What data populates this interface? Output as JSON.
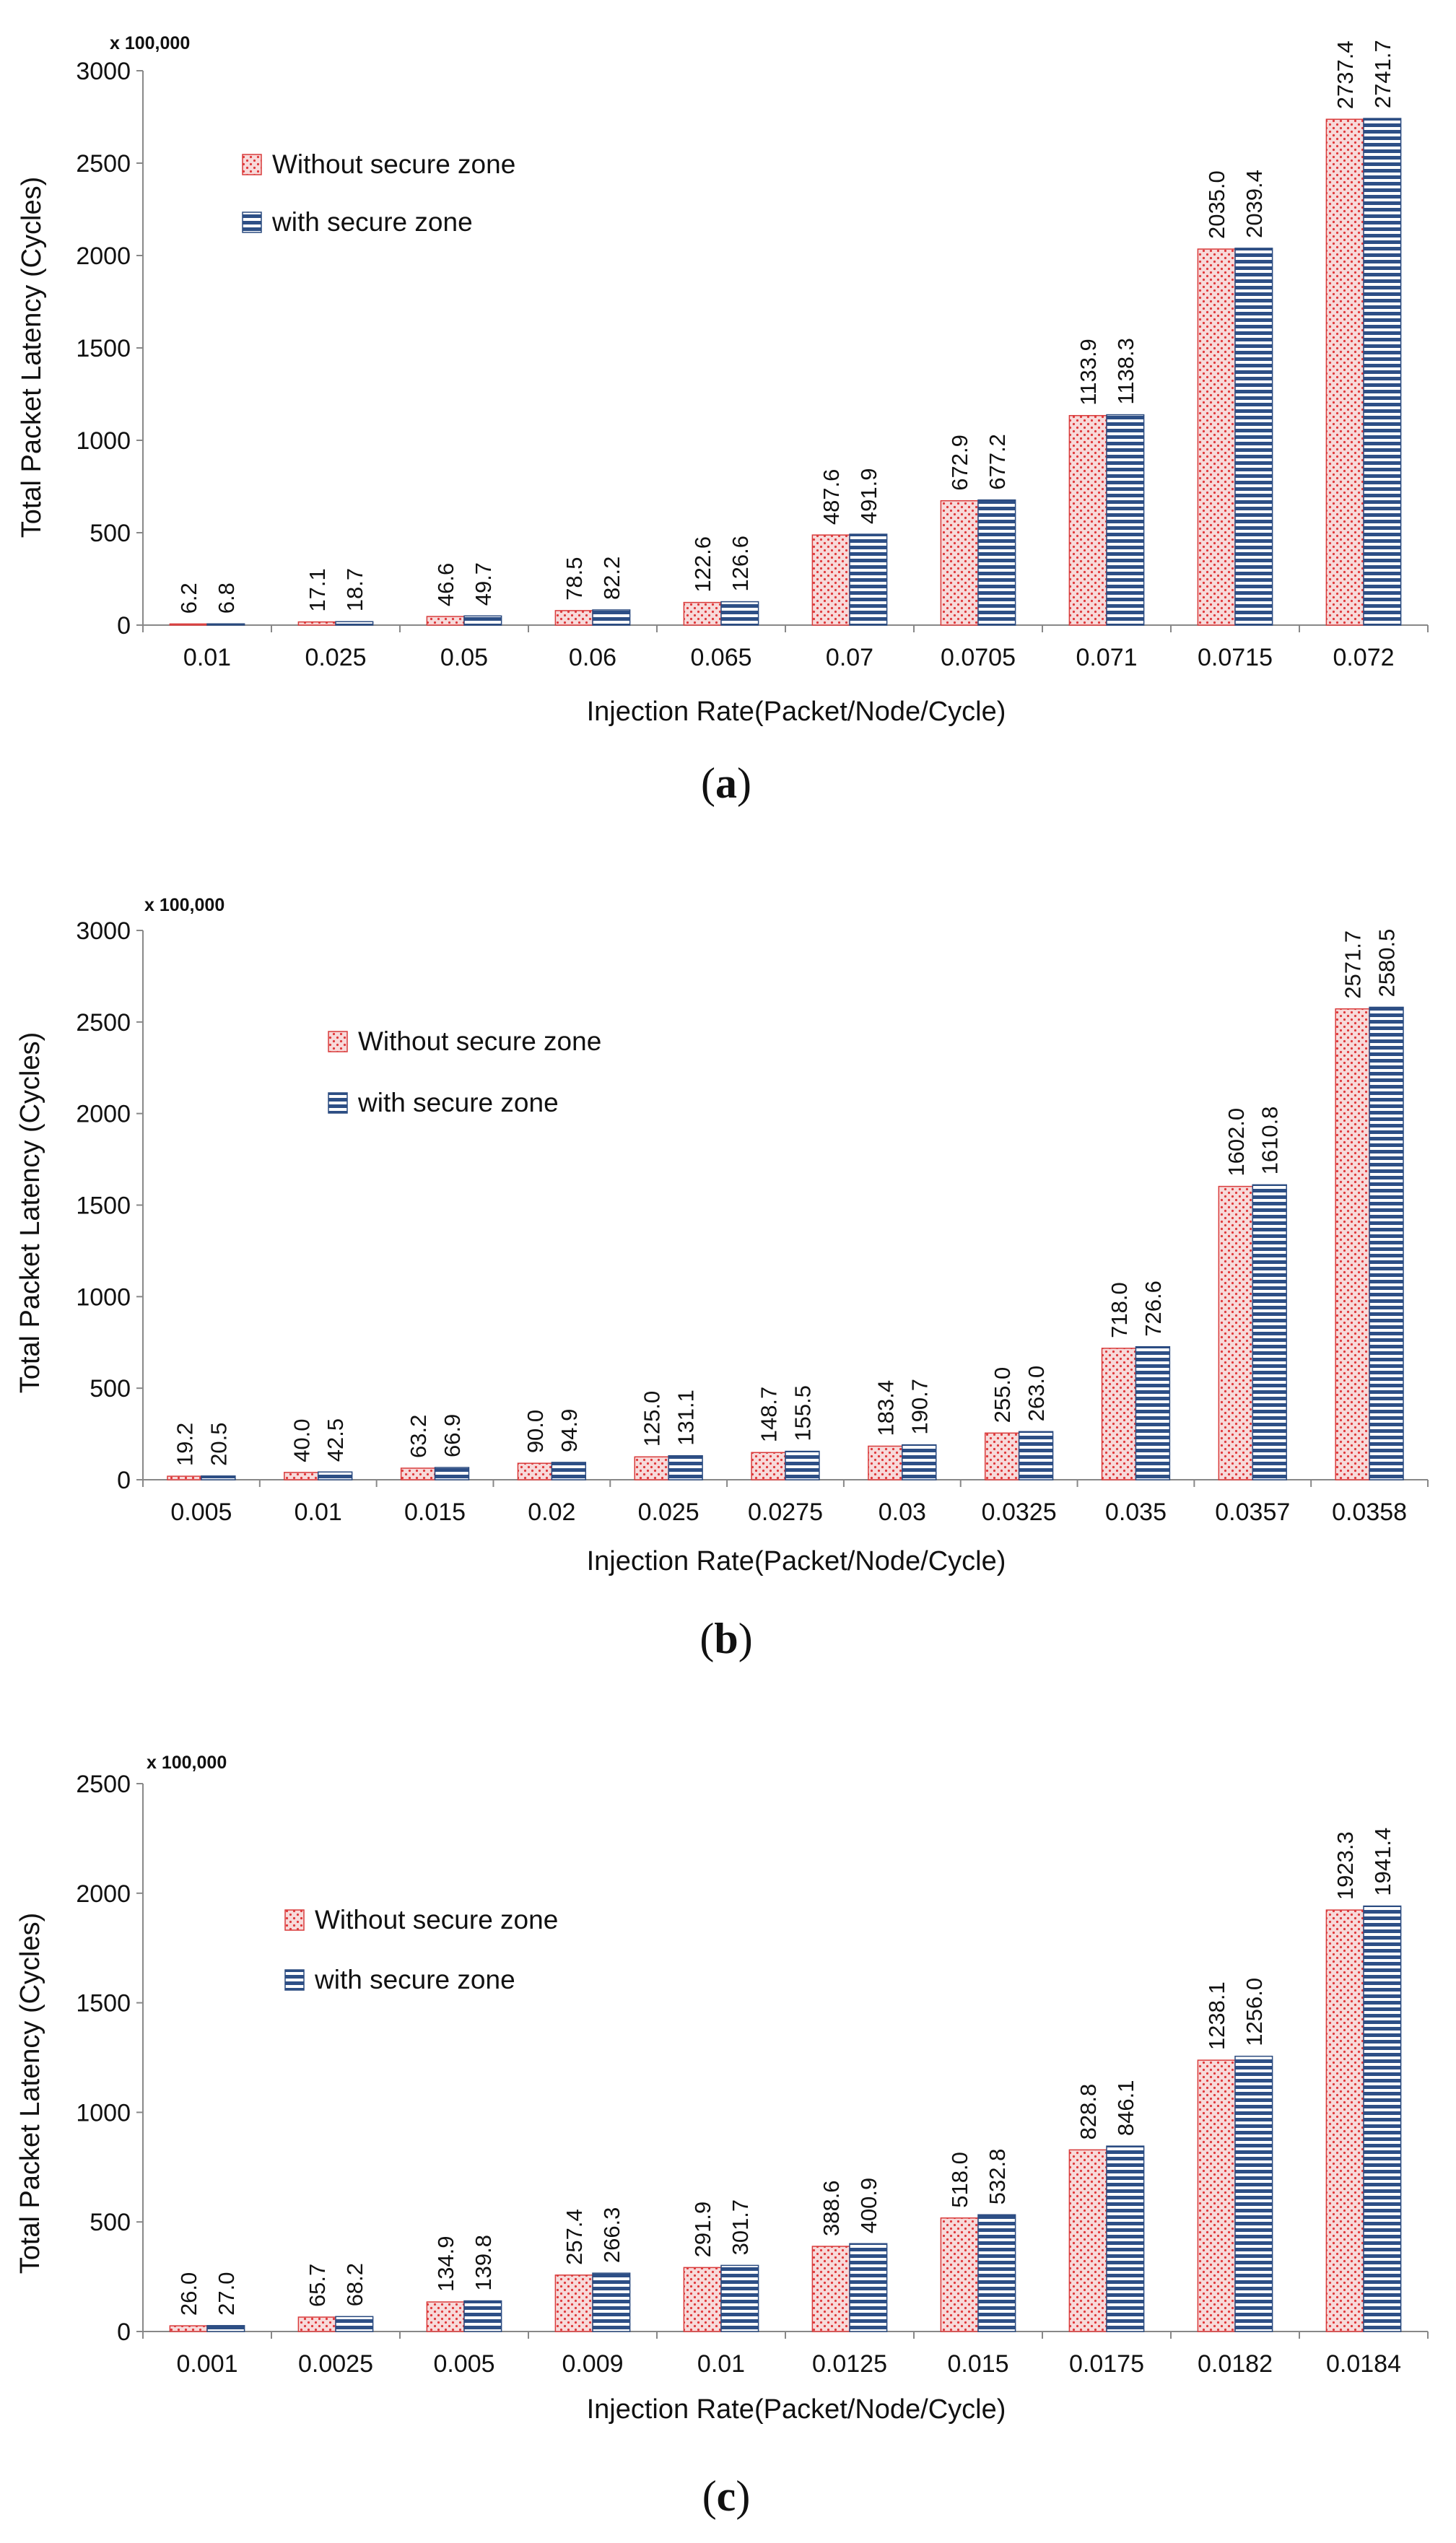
{
  "colors": {
    "without_fill": "#f7dada",
    "without_dots": "#e0393b",
    "without_edge": "#d93b3b",
    "with_fill": "#ffffff",
    "with_stripe": "#2d4f86",
    "with_edge": "#2a4a7f",
    "axis": "#888888"
  },
  "chart_data": [
    {
      "type": "bar",
      "caption_letter": "a",
      "caption": {
        "open": "(",
        "letter": "a",
        "close": ")"
      },
      "unit_label": "x 100,000",
      "xlabel": "Injection Rate(Packet/Node/Cycle)",
      "ylabel": "Total Packet Latency (Cycles)",
      "ylim": [
        0,
        3000
      ],
      "yticks": [
        0,
        500,
        1000,
        1500,
        2000,
        2500,
        3000
      ],
      "categories": [
        "0.01",
        "0.025",
        "0.05",
        "0.06",
        "0.065",
        "0.07",
        "0.0705",
        "0.071",
        "0.0715",
        "0.072"
      ],
      "series": [
        {
          "name": "Without secure zone",
          "values": [
            6.2,
            17.1,
            46.6,
            78.5,
            122.6,
            487.6,
            672.9,
            1133.9,
            2035.0,
            2737.4
          ]
        },
        {
          "name": "with secure zone",
          "values": [
            6.8,
            18.7,
            49.7,
            82.2,
            126.6,
            491.9,
            677.2,
            1138.3,
            2039.4,
            2741.7
          ]
        }
      ]
    },
    {
      "type": "bar",
      "caption_letter": "b",
      "caption": {
        "open": "(",
        "letter": "b",
        "close": ")"
      },
      "unit_label": "x 100,000",
      "xlabel": "Injection Rate(Packet/Node/Cycle)",
      "ylabel": "Total Packet Latency (Cycles)",
      "ylim": [
        0,
        3000
      ],
      "yticks": [
        0,
        500,
        1000,
        1500,
        2000,
        2500,
        3000
      ],
      "categories": [
        "0.005",
        "0.01",
        "0.015",
        "0.02",
        "0.025",
        "0.0275",
        "0.03",
        "0.0325",
        "0.035",
        "0.0357",
        "0.0358"
      ],
      "series": [
        {
          "name": "Without secure zone",
          "values": [
            19.2,
            40.0,
            63.2,
            90.0,
            125.0,
            148.7,
            183.4,
            255.0,
            718.0,
            1602.0,
            2571.7
          ]
        },
        {
          "name": "with secure zone",
          "values": [
            20.5,
            42.5,
            66.9,
            94.9,
            131.1,
            155.5,
            190.7,
            263.0,
            726.6,
            1610.8,
            2580.5
          ]
        }
      ]
    },
    {
      "type": "bar",
      "caption_letter": "c",
      "caption": {
        "open": "(",
        "letter": "c",
        "close": ")"
      },
      "unit_label": "x 100,000",
      "xlabel": "Injection Rate(Packet/Node/Cycle)",
      "ylabel": "Total Packet Latency (Cycles)",
      "ylim": [
        0,
        2500
      ],
      "yticks": [
        0,
        500,
        1000,
        1500,
        2000,
        2500
      ],
      "categories": [
        "0.001",
        "0.0025",
        "0.005",
        "0.009",
        "0.01",
        "0.0125",
        "0.015",
        "0.0175",
        "0.0182",
        "0.0184"
      ],
      "series": [
        {
          "name": "Without secure zone",
          "values": [
            26.0,
            65.7,
            134.9,
            257.4,
            291.9,
            388.6,
            518.0,
            828.8,
            1238.1,
            1923.3
          ]
        },
        {
          "name": "with secure zone",
          "values": [
            27.0,
            68.2,
            139.8,
            266.3,
            301.7,
            400.9,
            532.8,
            846.1,
            1256.0,
            1941.4
          ]
        }
      ]
    }
  ]
}
